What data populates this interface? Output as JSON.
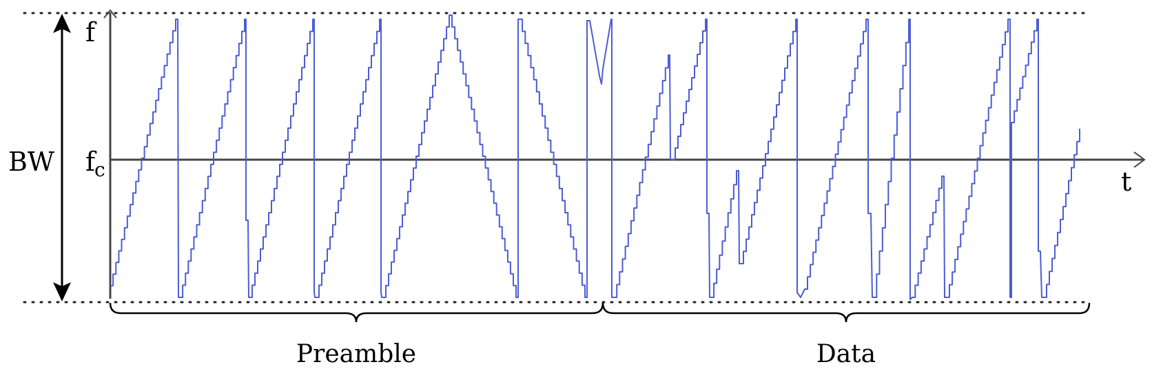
{
  "labels": {
    "bandwidth": "BW",
    "f_max": "f",
    "f_center_main": "f",
    "f_center_sub": "c",
    "time_axis": "t",
    "preamble": "Preamble",
    "data": "Data"
  },
  "colors": {
    "chirp": "#4a5cd6",
    "axis": "#444444",
    "text": "#000000"
  },
  "chirp_signal": {
    "unit": "normalized frequency (1 = top of band, -1 = bottom of band, 0 = fc)",
    "symbol_groups": [
      {
        "name": "Preamble",
        "symbols": [
          "up",
          "up",
          "up",
          "up",
          "down",
          "down",
          "partial-down"
        ]
      },
      {
        "name": "Data",
        "symbols": [
          "modulated-up",
          "modulated-up",
          "modulated-up",
          "modulated-up",
          "modulated-up",
          "modulated-up"
        ]
      }
    ]
  }
}
